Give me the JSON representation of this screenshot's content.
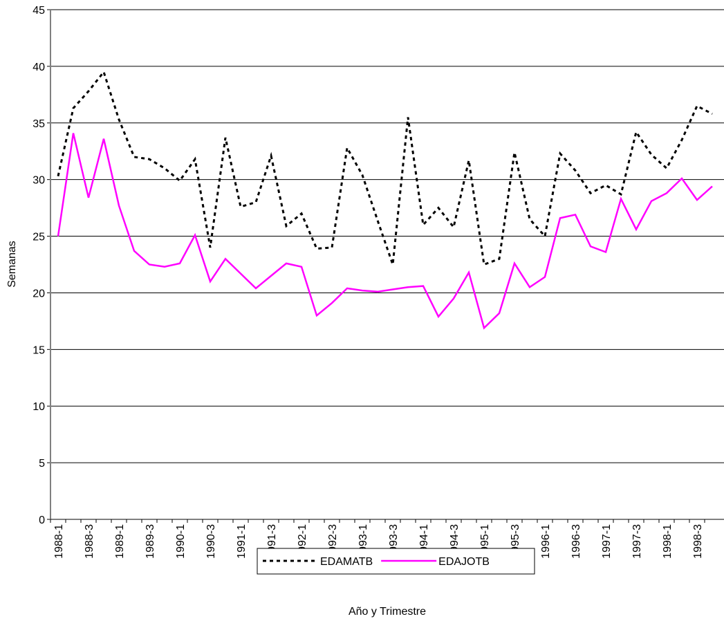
{
  "chart_data": {
    "type": "line",
    "x_label": "Año y Trimestre",
    "y_label": "Semanas",
    "categories": [
      "1988-1",
      null,
      "1988-3",
      null,
      "1989-1",
      null,
      "1989-3",
      null,
      "1990-1",
      null,
      "1990-3",
      null,
      "1991-1",
      null,
      "1991-3",
      null,
      "1992-1",
      null,
      "1992-3",
      null,
      "1993-1",
      null,
      "1993-3",
      null,
      "1994-1",
      null,
      "1994-3",
      null,
      "1995-1",
      null,
      "1995-3",
      null,
      "1996-1",
      null,
      "1996-3",
      null,
      "1997-1",
      null,
      "1997-3",
      null,
      "1998-1",
      null,
      "1998-3",
      null
    ],
    "series": [
      {
        "name": "EDAMATB",
        "color": "#000000",
        "line_style": "dashed",
        "values": [
          30.3,
          36.3,
          37.8,
          39.5,
          35.3,
          32.0,
          31.8,
          31.0,
          29.9,
          31.8,
          24.0,
          33.7,
          27.6,
          28.0,
          32.1,
          25.9,
          27.0,
          23.9,
          24.0,
          32.8,
          30.4,
          26.4,
          22.5,
          35.5,
          26.0,
          27.5,
          25.8,
          31.7,
          22.5,
          23.0,
          32.4,
          26.5,
          25.0,
          32.3,
          30.8,
          28.8,
          29.5,
          28.7,
          34.2,
          32.2,
          31.0,
          33.5,
          36.5,
          35.8
        ]
      },
      {
        "name": "EDAJOTB",
        "color": "#ff00ff",
        "line_style": "solid",
        "values": [
          25.0,
          34.1,
          28.4,
          33.6,
          27.7,
          23.7,
          22.5,
          22.3,
          22.6,
          25.1,
          21.0,
          23.0,
          21.7,
          20.4,
          21.5,
          22.6,
          22.3,
          18.0,
          19.1,
          20.4,
          20.2,
          20.1,
          20.3,
          20.5,
          20.6,
          17.9,
          19.5,
          21.8,
          16.9,
          18.2,
          22.6,
          20.5,
          21.4,
          26.6,
          26.9,
          24.1,
          23.6,
          28.3,
          25.6,
          28.1,
          28.8,
          30.1,
          28.2,
          29.4
        ]
      }
    ],
    "ylim": [
      0,
      45
    ],
    "yticks": [
      0,
      5,
      10,
      15,
      20,
      25,
      30,
      35,
      40,
      45
    ],
    "grid": true,
    "legend": "bottom"
  }
}
